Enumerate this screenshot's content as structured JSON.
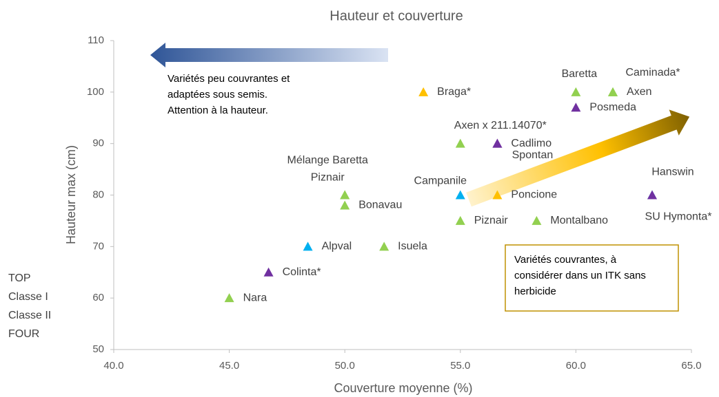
{
  "chart_data": {
    "type": "scatter",
    "title": "Hauteur et couverture",
    "x_label": "Couverture moyenne (%)",
    "y_label": "Hauteur max (cm)",
    "xlim": [
      40,
      65
    ],
    "ylim": [
      50,
      110
    ],
    "xticks": [
      {
        "value": 40,
        "label": "40.0"
      },
      {
        "value": 45,
        "label": "45.0"
      },
      {
        "value": 50,
        "label": "50.0"
      },
      {
        "value": 55,
        "label": "55.0"
      },
      {
        "value": 60,
        "label": "60.0"
      },
      {
        "value": 65,
        "label": "65.0"
      }
    ],
    "yticks": [
      50,
      60,
      70,
      80,
      90,
      100,
      110
    ],
    "series": [
      {
        "name": "TOP",
        "color": "#92d050",
        "x": [
          45.0,
          51.7,
          50.0,
          50.0,
          50.0,
          55.0,
          55.0,
          58.3,
          60.0,
          61.6,
          61.6
        ],
        "values": [
          60,
          70,
          80,
          80,
          78,
          90,
          75,
          75,
          100,
          100,
          100
        ],
        "labels": [
          "Nara",
          "Isuela",
          "Mélange Baretta",
          "Piznair",
          "Bonavau",
          "Axen x 211.14070*",
          "Piznair",
          "Montalbano",
          "Baretta",
          "Axen",
          "Caminada*"
        ]
      },
      {
        "name": "Classe I",
        "color": "#00b0f0",
        "x": [
          48.4,
          55.0,
          63.3
        ],
        "values": [
          70,
          80,
          80
        ],
        "labels": [
          "Alpval",
          "Campanile",
          "Hanswin"
        ]
      },
      {
        "name": "Classe II",
        "color": "#7030a0",
        "x": [
          46.7,
          56.6,
          56.6,
          60.0,
          63.3
        ],
        "values": [
          65,
          90,
          90,
          97,
          80
        ],
        "labels": [
          "Colinta*",
          "Cadlimo",
          "Spontan",
          "Posmeda",
          "SU Hymonta*"
        ]
      },
      {
        "name": "FOUR",
        "color": "#ffc000",
        "x": [
          53.4,
          56.6
        ],
        "values": [
          100,
          80
        ],
        "labels": [
          "Braga*",
          "Poncione"
        ]
      }
    ],
    "annotations": [
      [
        "Variétés peu couvrantes et",
        "adaptées sous semis.",
        "Attention à la hauteur."
      ],
      [
        "Variétés couvrantes, à",
        "considérer dans un ITK sans",
        "herbicide"
      ]
    ]
  }
}
